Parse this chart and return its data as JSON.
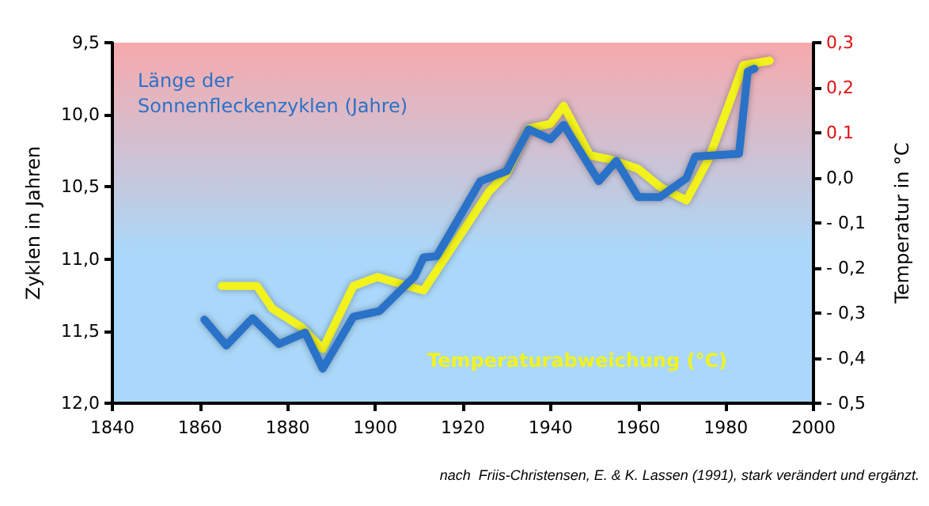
{
  "chart_data": {
    "type": "line",
    "xlim": [
      1840,
      2000
    ],
    "xticks": [
      1840,
      1860,
      1880,
      1900,
      1920,
      1940,
      1960,
      1980,
      2000
    ],
    "ylim": [
      12.0,
      9.5
    ],
    "yticks": [
      {
        "value": 9.5,
        "label": "9,5"
      },
      {
        "value": 10.0,
        "label": "10,0"
      },
      {
        "value": 10.5,
        "label": "10,5"
      },
      {
        "value": 11.0,
        "label": "11,0"
      },
      {
        "value": 11.5,
        "label": "11,5"
      },
      {
        "value": 12.0,
        "label": "12,0"
      }
    ],
    "y2lim": [
      -0.5,
      0.3
    ],
    "y2ticks": [
      {
        "value": 0.3,
        "label": "0,3"
      },
      {
        "value": 0.2,
        "label": "0,2"
      },
      {
        "value": 0.1,
        "label": "0,1"
      },
      {
        "value": 0.0,
        "label": "0,0"
      },
      {
        "value": -0.1,
        "label": "- 0,1"
      },
      {
        "value": -0.2,
        "label": "- 0,2"
      },
      {
        "value": -0.3,
        "label": "- 0,3"
      },
      {
        "value": -0.4,
        "label": "- 0,4"
      },
      {
        "value": -0.5,
        "label": "- 0,5"
      }
    ],
    "ylabel": "Zyklen in Jahren",
    "y2label": "Temperatur in °C",
    "grid": false,
    "legend": false,
    "marker": "none",
    "series": [
      {
        "name": "Temperaturabweichung (°C)",
        "color": "#f2f21e",
        "axis": "y2",
        "x": [
          1865,
          1868.5,
          1873,
          1876.5,
          1883,
          1888,
          1895,
          1900.5,
          1911,
          1926,
          1930,
          1935,
          1940,
          1943,
          1949,
          1954,
          1960,
          1965,
          1971,
          1976,
          1984,
          1990
        ],
        "values": [
          -0.24,
          -0.24,
          -0.24,
          -0.29,
          -0.33,
          -0.38,
          -0.24,
          -0.22,
          -0.25,
          -0.03,
          0.01,
          0.11,
          0.12,
          0.16,
          0.05,
          0.04,
          0.02,
          -0.02,
          -0.05,
          0.04,
          0.25,
          0.26
        ]
      },
      {
        "name": "Länge der\nSonnenfleckenzyklen (Jahre)",
        "color": "#2a72c8",
        "x": [
          1861,
          1866,
          1872,
          1878,
          1884,
          1888,
          1895,
          1901,
          1909,
          1911,
          1914,
          1924,
          1930,
          1935,
          1940,
          1943,
          1951,
          1955,
          1960,
          1965,
          1971,
          1973,
          1983,
          1985,
          1986.5
        ],
        "values": [
          11.42,
          11.6,
          11.41,
          11.59,
          11.51,
          11.76,
          11.4,
          11.36,
          11.12,
          10.99,
          10.98,
          10.46,
          10.39,
          10.1,
          10.17,
          10.07,
          10.46,
          10.32,
          10.57,
          10.57,
          10.44,
          10.29,
          10.27,
          9.7,
          9.68
        ]
      }
    ],
    "annotations": [
      "nach  Friis-Christensen, E. & K. Lassen (1991), stark verändert und ergänzt."
    ]
  }
}
